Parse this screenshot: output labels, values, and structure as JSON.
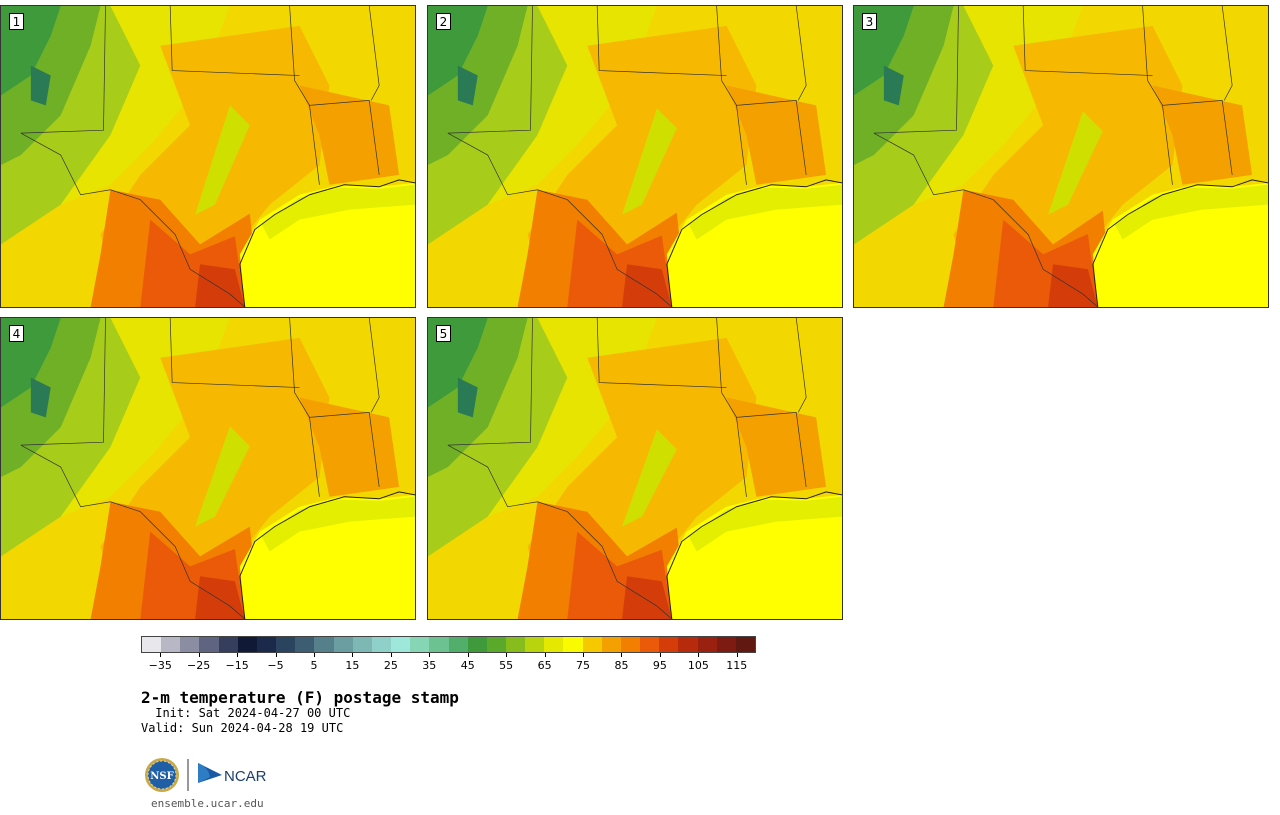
{
  "stamps": [
    {
      "label": "1",
      "warmth": 0.55
    },
    {
      "label": "2",
      "warmth": 0.6
    },
    {
      "label": "3",
      "warmth": 0.7
    },
    {
      "label": "4",
      "warmth": 0.5
    },
    {
      "label": "5",
      "warmth": 0.45
    }
  ],
  "colorbar": {
    "colors": [
      "#e8e8ec",
      "#b7b7c6",
      "#8b8da2",
      "#5f6480",
      "#363e5e",
      "#101a37",
      "#1b2a4a",
      "#2a4460",
      "#3d5d72",
      "#557f8b",
      "#6a9ea0",
      "#7db8b4",
      "#8fd0c8",
      "#9de8da",
      "#86d6b6",
      "#6cc391",
      "#52ae6b",
      "#3f9a3c",
      "#5aa92b",
      "#86bd1c",
      "#b7d40c",
      "#e5e800",
      "#fafa00",
      "#f6c800",
      "#f4a100",
      "#f27f00",
      "#ea5a08",
      "#d43d0a",
      "#b82a0c",
      "#9a2010",
      "#7d1a12",
      "#601810"
    ],
    "tick_labels": [
      "−35",
      "−25",
      "−15",
      "−5",
      "5",
      "15",
      "25",
      "35",
      "45",
      "55",
      "65",
      "75",
      "85",
      "95",
      "105",
      "115"
    ]
  },
  "title": "2-m temperature (F) postage stamp",
  "init_text": " Init: Sat 2024-04-27 00 UTC",
  "valid_text": "Valid: Sun 2024-04-28 19 UTC",
  "logos": {
    "nsf": "NSF",
    "ncar": "NCAR"
  },
  "site": "ensemble.ucar.edu"
}
